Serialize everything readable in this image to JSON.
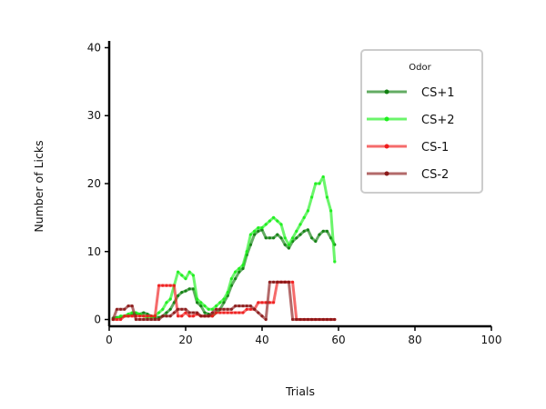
{
  "chart_data": {
    "type": "line",
    "xlabel": "Trials",
    "ylabel": "Number of Licks",
    "xlim": [
      0,
      100
    ],
    "ylim": [
      -1,
      41
    ],
    "xticks": [
      0,
      20,
      40,
      60,
      80,
      100
    ],
    "yticks": [
      0,
      10,
      20,
      30,
      40
    ],
    "grid": false,
    "legend_title": "Odor",
    "legend_position": "top-right",
    "series": [
      {
        "name": "CS+1",
        "color": "#108010",
        "x": [
          1,
          2,
          3,
          4,
          5,
          6,
          7,
          8,
          9,
          10,
          11,
          12,
          13,
          14,
          15,
          16,
          17,
          18,
          19,
          20,
          21,
          22,
          23,
          24,
          25,
          26,
          27,
          28,
          29,
          30,
          31,
          32,
          33,
          34,
          35,
          36,
          37,
          38,
          39,
          40,
          41,
          42,
          43,
          44,
          45,
          46,
          47,
          48,
          49,
          50,
          51,
          52,
          53,
          54,
          55,
          56,
          57,
          58,
          59
        ],
        "y": [
          0.2,
          0.3,
          0.3,
          0.5,
          0.5,
          0.8,
          0.8,
          0.8,
          1,
          0.8,
          0.5,
          0.3,
          0.3,
          0.5,
          1,
          1.5,
          2.5,
          3.5,
          4,
          4.2,
          4.5,
          4.5,
          2.5,
          2,
          1,
          0.8,
          0.5,
          1,
          1.5,
          2.5,
          3.5,
          5,
          6,
          7,
          7.5,
          9.5,
          11,
          12.5,
          13,
          13.2,
          12,
          12,
          12,
          12.5,
          12,
          11,
          10.5,
          11.5,
          12,
          12.5,
          13,
          13.2,
          12,
          11.5,
          12.5,
          13,
          13,
          12,
          11
        ]
      },
      {
        "name": "CS+2",
        "color": "#1cf01c",
        "x": [
          1,
          2,
          3,
          4,
          5,
          6,
          7,
          8,
          9,
          10,
          11,
          12,
          13,
          14,
          15,
          16,
          17,
          18,
          19,
          20,
          21,
          22,
          23,
          24,
          25,
          26,
          27,
          28,
          29,
          30,
          31,
          32,
          33,
          34,
          35,
          36,
          37,
          38,
          39,
          40,
          41,
          42,
          43,
          44,
          45,
          46,
          47,
          48,
          49,
          50,
          51,
          52,
          53,
          54,
          55,
          56,
          57,
          58,
          59
        ],
        "y": [
          0,
          0.2,
          0.5,
          0.5,
          0.8,
          1,
          1,
          0.8,
          0.5,
          0.3,
          0.3,
          0.5,
          1,
          1.5,
          2.5,
          3,
          5,
          7,
          6.5,
          6,
          7,
          6.5,
          3,
          2.5,
          2,
          1.5,
          1.5,
          2,
          2.5,
          3,
          4,
          6,
          7,
          7.5,
          8,
          10,
          12.5,
          13,
          13.5,
          13.5,
          14,
          14.5,
          15,
          14.5,
          14,
          12,
          11,
          12,
          13,
          14,
          15,
          16,
          18,
          20,
          20,
          21,
          18,
          16,
          8.5
        ]
      },
      {
        "name": "CS-1",
        "color": "#f01c1c",
        "x": [
          1,
          2,
          3,
          4,
          5,
          6,
          7,
          8,
          9,
          10,
          11,
          12,
          13,
          14,
          15,
          16,
          17,
          18,
          19,
          20,
          21,
          22,
          23,
          24,
          25,
          26,
          27,
          28,
          29,
          30,
          31,
          32,
          33,
          34,
          35,
          36,
          37,
          38,
          39,
          40,
          41,
          42,
          43,
          44,
          45,
          46,
          47,
          48,
          49,
          50,
          51,
          52,
          53,
          54,
          55,
          56,
          57,
          58,
          59
        ],
        "y": [
          0,
          0,
          0,
          0.5,
          0.5,
          0.5,
          0.5,
          0.5,
          0.5,
          0.5,
          0.5,
          0.5,
          5,
          5,
          5,
          5,
          5,
          0.5,
          0.5,
          1,
          0.5,
          0.5,
          0.8,
          0.5,
          0.5,
          0.5,
          0.5,
          1,
          1,
          1,
          1,
          1,
          1,
          1,
          1,
          1.5,
          1.5,
          1.5,
          2.5,
          2.5,
          2.5,
          2.5,
          2.5,
          5.5,
          5.5,
          5.5,
          5.5,
          5.5,
          0,
          0,
          0,
          0,
          0,
          0,
          0,
          0,
          0,
          0,
          0
        ]
      },
      {
        "name": "CS-2",
        "color": "#8b1a1a",
        "x": [
          1,
          2,
          3,
          4,
          5,
          6,
          7,
          8,
          9,
          10,
          11,
          12,
          13,
          14,
          15,
          16,
          17,
          18,
          19,
          20,
          21,
          22,
          23,
          24,
          25,
          26,
          27,
          28,
          29,
          30,
          31,
          32,
          33,
          34,
          35,
          36,
          37,
          38,
          39,
          40,
          41,
          42,
          43,
          44,
          45,
          46,
          47,
          48,
          49,
          50,
          51,
          52,
          53,
          54,
          55,
          56,
          57,
          58,
          59
        ],
        "y": [
          0,
          1.5,
          1.5,
          1.5,
          2,
          2,
          0,
          0,
          0,
          0,
          0,
          0,
          0,
          0.5,
          0.5,
          0.5,
          1,
          1.5,
          1.5,
          1.5,
          1,
          1,
          1,
          0.5,
          0.5,
          0.5,
          1,
          1.5,
          1.5,
          1.5,
          1.5,
          1.5,
          2,
          2,
          2,
          2,
          2,
          1.5,
          1,
          0.5,
          0,
          5.5,
          5.5,
          5.5,
          5.5,
          5.5,
          5.5,
          0,
          0,
          0,
          0,
          0,
          0,
          0,
          0,
          0,
          0,
          0,
          0
        ]
      }
    ]
  }
}
